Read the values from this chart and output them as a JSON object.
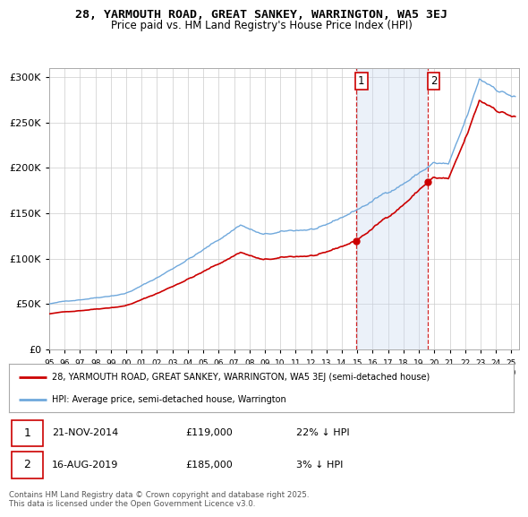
{
  "title_line1": "28, YARMOUTH ROAD, GREAT SANKEY, WARRINGTON, WA5 3EJ",
  "title_line2": "Price paid vs. HM Land Registry's House Price Index (HPI)",
  "ylabel_ticks": [
    "£0",
    "£50K",
    "£100K",
    "£150K",
    "£200K",
    "£250K",
    "£300K"
  ],
  "ytick_vals": [
    0,
    50000,
    100000,
    150000,
    200000,
    250000,
    300000
  ],
  "ylim": [
    0,
    310000
  ],
  "sale1_date": "21-NOV-2014",
  "sale1_price": 119000,
  "sale1_pct": "22%",
  "sale2_date": "16-AUG-2019",
  "sale2_price": 185000,
  "sale2_pct": "3%",
  "sale1_year": 2014.9,
  "sale2_year": 2019.6,
  "hpi_color": "#6fa8dc",
  "price_color": "#cc0000",
  "marker_color": "#cc0000",
  "shade_color": "#c8d8f0",
  "dashed_color": "#cc0000",
  "grid_color": "#cccccc",
  "legend_label1": "28, YARMOUTH ROAD, GREAT SANKEY, WARRINGTON, WA5 3EJ (semi-detached house)",
  "legend_label2": "HPI: Average price, semi-detached house, Warrington",
  "footnote": "Contains HM Land Registry data © Crown copyright and database right 2025.\nThis data is licensed under the Open Government Licence v3.0.",
  "bg_color": "#ffffff"
}
